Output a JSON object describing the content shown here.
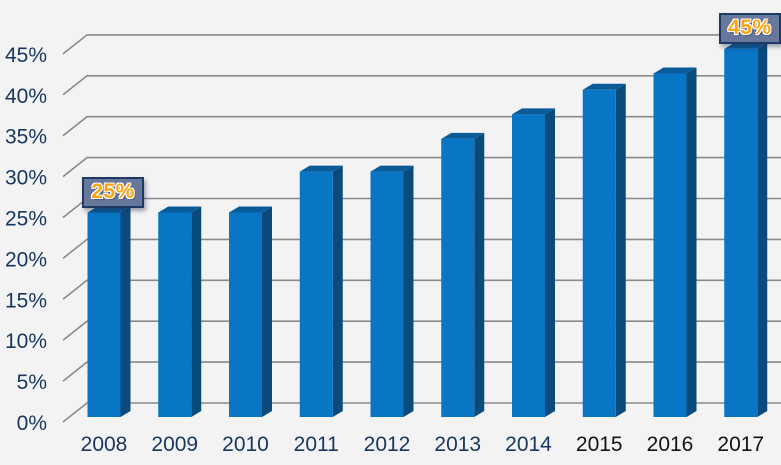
{
  "chart_data": {
    "type": "bar",
    "style": "3d-column",
    "title": "",
    "xlabel": "",
    "ylabel": "",
    "categories": [
      "2008",
      "2009",
      "2010",
      "2011",
      "2012",
      "2013",
      "2014",
      "2015",
      "2016",
      "2017"
    ],
    "values": [
      25,
      25,
      25,
      30,
      30,
      34,
      37,
      40,
      42,
      45
    ],
    "unit": "%",
    "ylim": [
      0,
      45
    ],
    "ytick_step": 5,
    "ytick_labels": [
      "0%",
      "5%",
      "10%",
      "15%",
      "20%",
      "25%",
      "30%",
      "35%",
      "40%",
      "45%"
    ],
    "grid": true,
    "legend": "none",
    "annotations": [
      {
        "category": "2008",
        "text": "25%"
      },
      {
        "category": "2017",
        "text": "45%"
      }
    ],
    "colors": {
      "background": "#f3f3f4",
      "gridline": "#8a8a8a",
      "bar_front": "#0875c5",
      "bar_top": "#0a5c99",
      "bar_side": "#0a4b7b",
      "axis_text": "#17375e",
      "annotation_text": "#fba311",
      "annotation_fill": "#68789c",
      "annotation_border": "#1f3864",
      "x_label_colors": [
        "#17375e",
        "#17375e",
        "#17375e",
        "#17375e",
        "#17375e",
        "#17375e",
        "#17375e",
        "#141418",
        "#141418",
        "#141418"
      ]
    }
  }
}
